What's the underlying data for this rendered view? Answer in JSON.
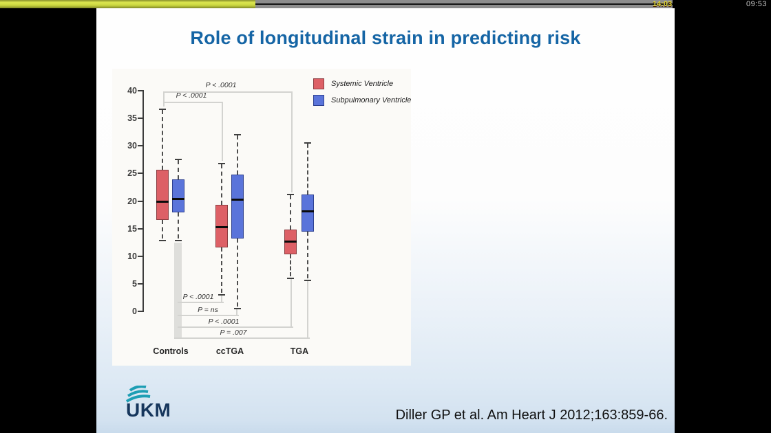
{
  "player": {
    "progress_percent": 38,
    "overlay_time": "14:03",
    "clock_time": "09:53"
  },
  "slide": {
    "title": "Role of longitudinal strain in predicting risk",
    "citation": "Diller GP et al. Am Heart J 2012;163:859-66.",
    "logo_text": "UKM"
  },
  "colors": {
    "title_blue": "#1565a5",
    "systemic_red": "#dd6066",
    "subpulmonary_blue": "#5a74da",
    "logo_teal": "#1d9eb4",
    "logo_navy": "#16365c",
    "progress_yellow": "#ccd83e",
    "bracket_gray": "#d3d3d0"
  },
  "chart_data": {
    "type": "boxplot",
    "title": "",
    "xlabel": "",
    "ylabel": "",
    "ylim": [
      0,
      40
    ],
    "yticks": [
      40,
      35,
      30,
      25,
      20,
      15,
      10,
      5,
      0
    ],
    "categories": [
      "Controls",
      "ccTGA",
      "TGA"
    ],
    "legend_position": "top-right",
    "series": [
      {
        "name": "Systemic Ventricle",
        "color": "#dd6066",
        "border_color": "#8a3c40",
        "boxes": [
          {
            "category": "Controls",
            "whisker_low": 12.8,
            "q1": 16.5,
            "median": 19.8,
            "q3": 25.5,
            "whisker_high": 36.6
          },
          {
            "category": "ccTGA",
            "whisker_low": 3.0,
            "q1": 11.5,
            "median": 15.2,
            "q3": 19.2,
            "whisker_high": 26.8
          },
          {
            "category": "TGA",
            "whisker_low": 6.0,
            "q1": 10.2,
            "median": 12.6,
            "q3": 14.7,
            "whisker_high": 21.2
          }
        ]
      },
      {
        "name": "Subpulmonary Ventricle",
        "color": "#5a74da",
        "border_color": "#2c3f8f",
        "boxes": [
          {
            "category": "Controls",
            "whisker_low": 12.8,
            "q1": 17.8,
            "median": 20.3,
            "q3": 23.8,
            "whisker_high": 27.6
          },
          {
            "category": "ccTGA",
            "whisker_low": 0.5,
            "q1": 13.1,
            "median": 20.2,
            "q3": 24.7,
            "whisker_high": 32.0
          },
          {
            "category": "TGA",
            "whisker_low": 5.6,
            "q1": 14.3,
            "median": 18.1,
            "q3": 21.0,
            "whisker_high": 30.5
          }
        ]
      }
    ],
    "annotations": {
      "top": [
        "P < .0001",
        "P < .0001"
      ],
      "bottom": [
        "P < .0001",
        "P = ns",
        "P < .0001",
        "P = .007"
      ]
    }
  }
}
